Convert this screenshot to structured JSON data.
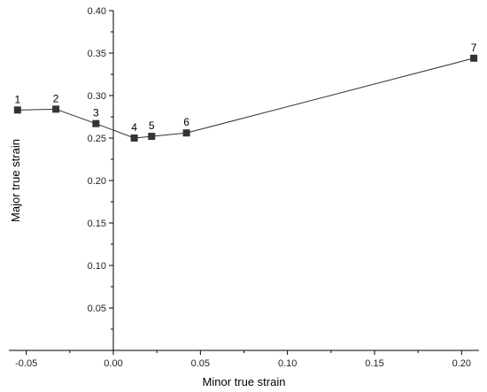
{
  "chart_data": {
    "type": "line",
    "xlabel": "Minor true strain",
    "ylabel": "Major true strain",
    "xlim": [
      -0.06,
      0.21
    ],
    "ylim": [
      0.0,
      0.4
    ],
    "x_ticks": [
      -0.05,
      0.0,
      0.05,
      0.1,
      0.15,
      0.2
    ],
    "x_tick_labels": [
      "-0.05",
      "0.00",
      "0.05",
      "0.10",
      "0.15",
      "0.20"
    ],
    "y_ticks": [
      0.05,
      0.1,
      0.15,
      0.2,
      0.25,
      0.3,
      0.35,
      0.4
    ],
    "y_tick_labels": [
      "0.05",
      "0.10",
      "0.15",
      "0.20",
      "0.25",
      "0.30",
      "0.35",
      "0.40"
    ],
    "grid": false,
    "marker": "square",
    "series_color": "#333333",
    "points": [
      {
        "label": "1",
        "x": -0.055,
        "y": 0.283
      },
      {
        "label": "2",
        "x": -0.033,
        "y": 0.284
      },
      {
        "label": "3",
        "x": -0.01,
        "y": 0.267
      },
      {
        "label": "4",
        "x": 0.012,
        "y": 0.25
      },
      {
        "label": "5",
        "x": 0.022,
        "y": 0.252
      },
      {
        "label": "6",
        "x": 0.042,
        "y": 0.256
      },
      {
        "label": "7",
        "x": 0.207,
        "y": 0.344
      }
    ]
  }
}
